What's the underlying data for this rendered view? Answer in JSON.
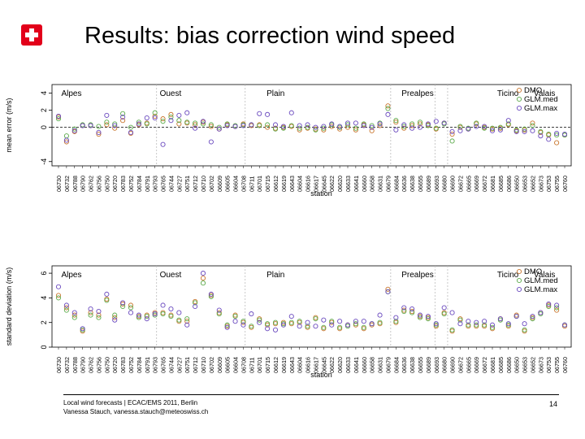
{
  "title": "Results: bias correction wind speed",
  "footer": {
    "line1": "Local wind forecasts | ECAC/EMS 2011, Berlin",
    "line2": "Vanessa Stauch, vanessa.stauch@meteoswiss.ch"
  },
  "page_number": "14",
  "colors": {
    "logo_red": "#e2001a",
    "DMO": "#c9762e",
    "GLM.med": "#5dab4c",
    "GLM.max": "#6b4bbf"
  },
  "chart_data": [
    {
      "type": "scatter",
      "xlabel": "station",
      "ylabel": "mean error (m/s)",
      "ylim": [
        -4.5,
        5
      ],
      "yticks": [
        -4,
        0,
        2,
        4
      ],
      "grid": false,
      "legend": "top-right",
      "region_labels": [
        "Alpes",
        "Ouest",
        "Plain",
        "Prealpes",
        "Ticino",
        "Valais"
      ],
      "series": [
        {
          "name": "DMO",
          "values": [
            1.2,
            -1.7,
            -0.5,
            0.2,
            0.2,
            -0.8,
            0.3,
            -0.1,
            0.8,
            -0.7,
            0.3,
            0.5,
            1.3,
            1.0,
            1.5,
            0.4,
            0.5,
            0.3,
            0.6,
            0.1,
            -0.2,
            0.3,
            0.1,
            0.4,
            0.2,
            0.3,
            0.0,
            -0.1,
            0.0,
            0.1,
            -0.3,
            -0.1,
            -0.2,
            -0.3,
            0.1,
            -0.2,
            0.0,
            -0.3,
            0.3,
            -0.4,
            0.2,
            2.5,
            0.6,
            -0.1,
            0.2,
            0.4,
            0.3,
            -0.2,
            0.5,
            -0.8,
            0.0,
            -0.2,
            0.4,
            0.0,
            -0.2,
            -0.1,
            0.3,
            -0.4,
            -0.3,
            0.5,
            -0.6,
            -0.9,
            -1.8,
            -0.9
          ]
        },
        {
          "name": "GLM.med",
          "values": [
            1.0,
            -1.0,
            -0.2,
            0.3,
            0.3,
            0.1,
            0.6,
            0.4,
            1.6,
            0.0,
            0.6,
            0.4,
            1.7,
            0.7,
            1.2,
            0.8,
            0.6,
            0.5,
            0.4,
            0.3,
            0.0,
            0.4,
            0.2,
            0.3,
            0.3,
            0.2,
            0.3,
            -0.2,
            -0.1,
            0.2,
            -0.1,
            0.0,
            -0.3,
            -0.1,
            0.3,
            0.0,
            0.3,
            -0.1,
            0.4,
            0.2,
            0.5,
            2.2,
            0.8,
            0.1,
            0.4,
            0.6,
            0.2,
            -0.1,
            0.4,
            -1.6,
            0.1,
            -0.1,
            0.5,
            -0.1,
            -0.1,
            0.0,
            0.4,
            -0.3,
            -0.2,
            0.2,
            -0.5,
            -0.8,
            -0.9,
            -0.9
          ]
        },
        {
          "name": "GLM.max",
          "values": [
            1.3,
            -1.5,
            -0.4,
            0.2,
            0.2,
            -0.6,
            1.4,
            0.2,
            1.2,
            -0.6,
            0.4,
            1.1,
            1.1,
            -2.0,
            0.8,
            1.4,
            1.7,
            -0.1,
            0.7,
            -1.7,
            -0.2,
            0.2,
            0.1,
            0.2,
            0.3,
            1.6,
            1.5,
            0.3,
            0.1,
            1.7,
            0.2,
            0.3,
            0.0,
            0.1,
            0.4,
            0.1,
            0.5,
            0.5,
            0.2,
            0.0,
            0.4,
            1.5,
            -0.3,
            0.3,
            -0.1,
            0.0,
            0.4,
            0.7,
            0.5,
            -0.5,
            -0.4,
            -0.2,
            0.1,
            0.1,
            -0.4,
            -0.3,
            0.8,
            -0.5,
            -0.5,
            -0.4,
            -1.0,
            -1.4,
            -0.7,
            -0.8
          ]
        }
      ]
    },
    {
      "type": "scatter",
      "xlabel": "station",
      "ylabel": "standard deviation (m/s)",
      "ylim": [
        0,
        6.6
      ],
      "yticks": [
        0,
        2,
        4,
        6
      ],
      "grid": false,
      "legend": "top-right",
      "region_labels": [
        "Alpes",
        "Ouest",
        "Plain",
        "Prealpes",
        "Ticino",
        "Valais"
      ],
      "series": [
        {
          "name": "DMO",
          "values": [
            4.2,
            3.2,
            2.6,
            1.3,
            2.8,
            2.6,
            3.9,
            2.4,
            3.5,
            3.4,
            2.5,
            2.6,
            2.8,
            2.8,
            2.6,
            2.1,
            2.1,
            3.7,
            5.6,
            4.2,
            2.8,
            1.7,
            2.6,
            2.0,
            1.6,
            2.3,
            1.8,
            1.9,
            2.0,
            1.9,
            2.0,
            1.6,
            2.4,
            1.5,
            2.0,
            1.5,
            1.8,
            1.8,
            1.5,
            1.8,
            1.9,
            4.7,
            2.0,
            3.0,
            2.9,
            2.5,
            2.4,
            1.7,
            2.8,
            1.3,
            2.3,
            1.7,
            1.7,
            1.7,
            1.5,
            2.3,
            1.7,
            2.6,
            1.3,
            2.4,
            2.8,
            3.4,
            3.0,
            1.7
          ]
        },
        {
          "name": "GLM.med",
          "values": [
            4.0,
            3.0,
            2.4,
            1.4,
            2.6,
            2.4,
            3.8,
            2.6,
            3.3,
            3.2,
            2.4,
            2.5,
            2.6,
            2.7,
            2.5,
            2.2,
            2.3,
            3.6,
            5.2,
            4.1,
            2.7,
            1.8,
            2.5,
            2.1,
            1.7,
            2.2,
            1.9,
            2.0,
            1.9,
            2.0,
            2.1,
            1.7,
            2.3,
            1.6,
            2.1,
            1.6,
            1.7,
            1.9,
            1.6,
            1.9,
            2.0,
            4.5,
            2.1,
            2.9,
            2.8,
            2.4,
            2.3,
            1.8,
            2.7,
            1.4,
            2.2,
            1.8,
            1.8,
            1.8,
            1.6,
            2.2,
            1.8,
            2.5,
            1.4,
            2.3,
            2.7,
            3.3,
            3.2,
            1.8
          ]
        },
        {
          "name": "GLM.max",
          "values": [
            4.9,
            3.4,
            2.8,
            1.5,
            3.1,
            2.9,
            4.3,
            2.2,
            3.6,
            2.8,
            2.6,
            2.3,
            2.7,
            3.4,
            3.1,
            2.8,
            1.8,
            3.3,
            6.0,
            4.3,
            3.0,
            1.6,
            2.1,
            1.8,
            2.7,
            2.0,
            1.5,
            1.4,
            1.8,
            2.5,
            1.7,
            2.0,
            1.7,
            2.2,
            1.8,
            2.1,
            1.8,
            2.1,
            2.1,
            1.9,
            2.6,
            4.5,
            2.4,
            3.2,
            3.1,
            2.6,
            2.5,
            1.9,
            3.2,
            2.8,
            1.9,
            2.1,
            2.0,
            2.1,
            1.8,
            2.3,
            1.9,
            2.5,
            1.9,
            2.5,
            2.8,
            3.5,
            3.4,
            1.8
          ]
        }
      ]
    }
  ],
  "stations": [
    "06730",
    "06732",
    "06788",
    "06790",
    "06762",
    "06756",
    "06750",
    "06720",
    "06783",
    "06752",
    "06784",
    "06791",
    "06793",
    "06765",
    "06744",
    "06727",
    "06751",
    "06712",
    "06710",
    "06702",
    "06609",
    "06605",
    "06604",
    "06708",
    "06711",
    "06701",
    "06715",
    "06612",
    "06619",
    "06643",
    "06604",
    "06616",
    "06617",
    "06645",
    "06622",
    "06620",
    "06633",
    "06641",
    "06660",
    "06658",
    "06631",
    "06679",
    "06684",
    "06636",
    "06638",
    "06655",
    "06689",
    "06693",
    "06680",
    "06690",
    "06672",
    "06665",
    "06669",
    "06672",
    "06681",
    "06685",
    "06686",
    "06650",
    "06653",
    "06652",
    "06673",
    "06753",
    "06755",
    "06760"
  ]
}
